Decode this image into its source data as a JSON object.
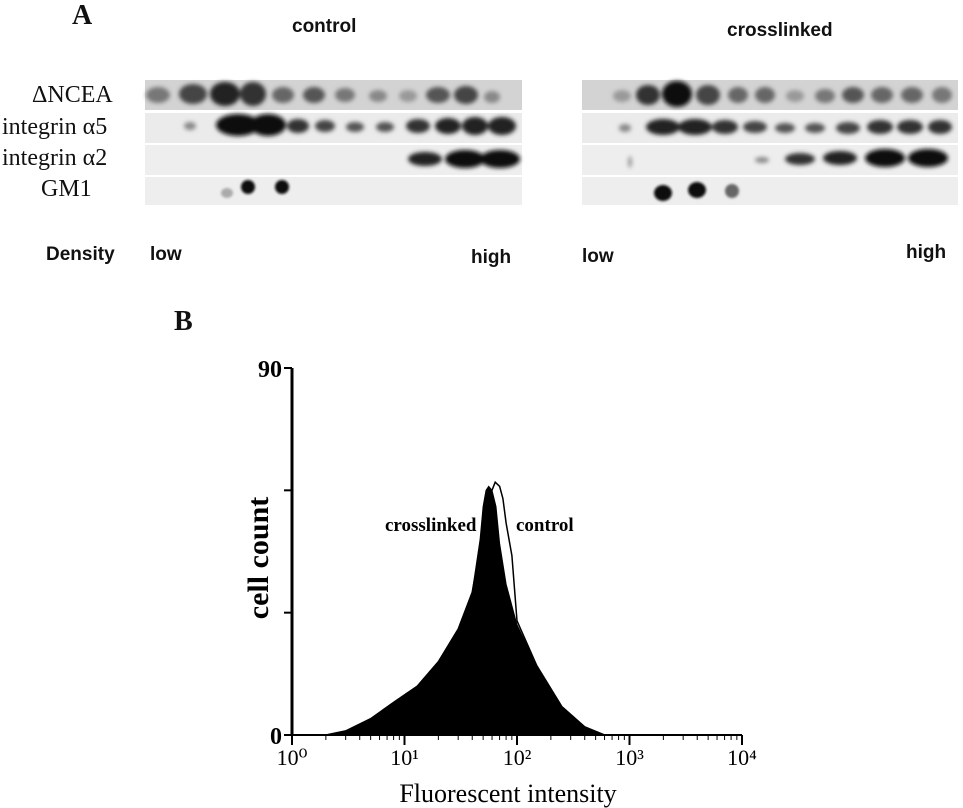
{
  "panel_a": {
    "letter": "A",
    "control_title": "control",
    "crosslinked_title": "crosslinked",
    "rows": [
      "ΔNCEA",
      "integrin α5",
      "integrin α2",
      "GM1"
    ],
    "density_label": "Density",
    "left_low": "low",
    "left_high": "high",
    "right_low": "low",
    "right_high": "high"
  },
  "panel_b": {
    "letter": "B"
  },
  "chart_data": {
    "type": "area",
    "xlabel": "Fluorescent intensity",
    "ylabel": "cell count",
    "xscale": "log",
    "xlim": [
      1,
      10000
    ],
    "ylim": [
      0,
      90
    ],
    "x_tick_labels": [
      "10⁰",
      "10¹",
      "10²",
      "10³",
      "10⁴"
    ],
    "y_tick_labels": [
      "0",
      "90"
    ],
    "grid": false,
    "annotations": [
      "crosslinked",
      "control"
    ],
    "series": [
      {
        "name": "crosslinked",
        "fill": "#000000",
        "points": [
          [
            2,
            0
          ],
          [
            3,
            1
          ],
          [
            5,
            4
          ],
          [
            8,
            8
          ],
          [
            13,
            12
          ],
          [
            20,
            18
          ],
          [
            30,
            26
          ],
          [
            40,
            35
          ],
          [
            47,
            48
          ],
          [
            50,
            56
          ],
          [
            53,
            60
          ],
          [
            56,
            61
          ],
          [
            60,
            60
          ],
          [
            65,
            56
          ],
          [
            70,
            47
          ],
          [
            80,
            37
          ],
          [
            100,
            27
          ],
          [
            150,
            17
          ],
          [
            250,
            7
          ],
          [
            400,
            2
          ],
          [
            600,
            0
          ]
        ]
      },
      {
        "name": "control",
        "fill": "#ffffff",
        "points": [
          [
            2,
            0
          ],
          [
            3,
            1
          ],
          [
            5,
            4
          ],
          [
            8,
            8
          ],
          [
            13,
            12
          ],
          [
            20,
            18
          ],
          [
            30,
            26
          ],
          [
            40,
            35
          ],
          [
            47,
            46
          ],
          [
            52,
            54
          ],
          [
            58,
            59
          ],
          [
            64,
            62
          ],
          [
            70,
            61
          ],
          [
            75,
            58
          ],
          [
            80,
            52
          ],
          [
            90,
            44
          ],
          [
            100,
            28
          ],
          [
            150,
            17
          ],
          [
            250,
            7
          ],
          [
            400,
            2
          ],
          [
            600,
            0
          ]
        ]
      }
    ]
  }
}
